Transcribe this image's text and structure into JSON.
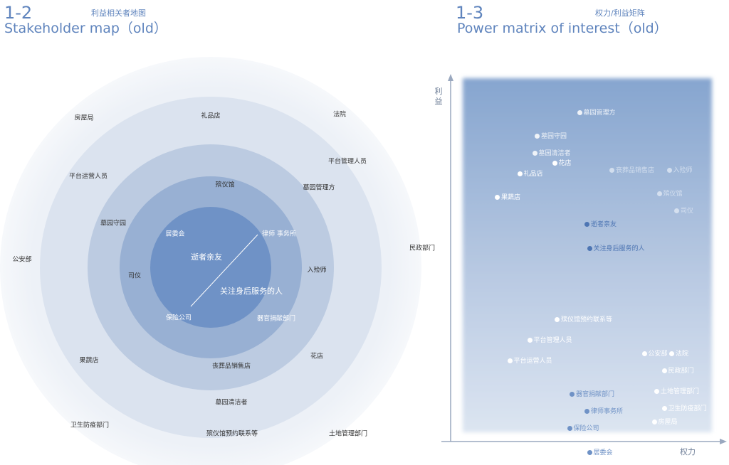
{
  "left_header": {
    "number": "1-2",
    "title_en": "Stakeholder map（old）",
    "title_cn": "利益相关者地图"
  },
  "right_header": {
    "number": "1-3",
    "title_en": "Power matrix of interest（old）",
    "title_cn": "权力/利益矩阵"
  },
  "colors": {
    "accent": "#5f84bd",
    "ring_outer": "#edf1f7",
    "ring_2": "#dbe3ef",
    "ring_3": "#bccbe1",
    "ring_4": "#98b0d3",
    "core": "#6f92c6",
    "matrix_top": "#86a5cf",
    "matrix_bottom": "#dce5f1"
  },
  "stakeholder_map": {
    "core_labels": [
      "逝者亲友",
      "关注身后服务的人"
    ],
    "ring1": [
      "居委会",
      "律师 事务所",
      "保险公司",
      "器官捐献部门"
    ],
    "ring2": [
      "殡仪馆",
      "墓园管理方",
      "入殓师",
      "丧葬品销售店",
      "司仪",
      "墓园守园"
    ],
    "ring3": [
      "礼品店",
      "平台管理人员",
      "花店",
      "墓园清洁者"
    ],
    "ring4": [
      "房屋局",
      "法院",
      "平台运营人员",
      "民政部门",
      "公安部",
      "果蔬店",
      "卫生防疫部门",
      "殡仪馆预约联系等",
      "土地管理部门"
    ]
  },
  "power_matrix": {
    "y_axis_label": "利\n益",
    "x_axis_label": "权力",
    "points": [
      {
        "label": "墓园管理方",
        "power": 0.47,
        "interest": 0.94,
        "tone": "light"
      },
      {
        "label": "墓园守园",
        "power": 0.3,
        "interest": 0.87,
        "tone": "light"
      },
      {
        "label": "墓园清洁者",
        "power": 0.29,
        "interest": 0.82,
        "tone": "light"
      },
      {
        "label": "花店",
        "power": 0.37,
        "interest": 0.79,
        "tone": "white"
      },
      {
        "label": "礼品店",
        "power": 0.23,
        "interest": 0.76,
        "tone": "white"
      },
      {
        "label": "丧葬品销售店",
        "power": 0.6,
        "interest": 0.77,
        "tone": "faint"
      },
      {
        "label": "入殓师",
        "power": 0.83,
        "interest": 0.77,
        "tone": "faint"
      },
      {
        "label": "殡仪馆",
        "power": 0.79,
        "interest": 0.7,
        "tone": "faint"
      },
      {
        "label": "司仪",
        "power": 0.86,
        "interest": 0.65,
        "tone": "faint"
      },
      {
        "label": "果蔬店",
        "power": 0.14,
        "interest": 0.69,
        "tone": "white"
      },
      {
        "label": "逝者亲友",
        "power": 0.5,
        "interest": 0.61,
        "tone": "dark"
      },
      {
        "label": "关注身后服务的人",
        "power": 0.51,
        "interest": 0.54,
        "tone": "dark"
      },
      {
        "label": "殡仪馆预约联系等",
        "power": 0.38,
        "interest": 0.33,
        "tone": "white"
      },
      {
        "label": "平台管理人员",
        "power": 0.27,
        "interest": 0.27,
        "tone": "white"
      },
      {
        "label": "平台运营人员",
        "power": 0.19,
        "interest": 0.21,
        "tone": "white"
      },
      {
        "label": "公安部",
        "power": 0.73,
        "interest": 0.23,
        "tone": "white"
      },
      {
        "label": "法院",
        "power": 0.84,
        "interest": 0.23,
        "tone": "white"
      },
      {
        "label": "民政部门",
        "power": 0.81,
        "interest": 0.18,
        "tone": "white"
      },
      {
        "label": "土地管理部门",
        "power": 0.78,
        "interest": 0.12,
        "tone": "white"
      },
      {
        "label": "卫生防疫部门",
        "power": 0.81,
        "interest": 0.07,
        "tone": "white"
      },
      {
        "label": "房屋局",
        "power": 0.77,
        "interest": 0.03,
        "tone": "white"
      },
      {
        "label": "器官捐献部门",
        "power": 0.44,
        "interest": 0.11,
        "tone": "mid"
      },
      {
        "label": "律师事务所",
        "power": 0.5,
        "interest": 0.06,
        "tone": "mid"
      },
      {
        "label": "保险公司",
        "power": 0.43,
        "interest": 0.01,
        "tone": "mid"
      },
      {
        "label": "居委会",
        "power": 0.51,
        "interest": -0.06,
        "tone": "mid"
      }
    ]
  }
}
